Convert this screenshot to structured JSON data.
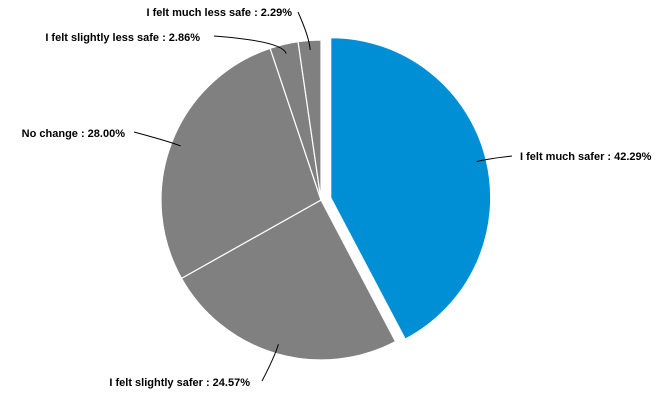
{
  "chart_data": {
    "type": "pie",
    "title": "",
    "series": [
      {
        "label": "I felt much safer",
        "value": 42.29,
        "display": "I felt much safer : 42.29%",
        "color": "#008fd5",
        "exploded": true
      },
      {
        "label": "I felt slightly safer",
        "value": 24.57,
        "display": "I felt slightly safer : 24.57%",
        "color": "#808080",
        "exploded": false
      },
      {
        "label": "No change",
        "value": 28.0,
        "display": "No change : 28.00%",
        "color": "#808080",
        "exploded": false
      },
      {
        "label": "I felt slightly less safe",
        "value": 2.86,
        "display": "I felt slightly less safe : 2.86%",
        "color": "#808080",
        "exploded": false
      },
      {
        "label": "I felt much less safe",
        "value": 2.29,
        "display": "I felt much less safe : 2.29%",
        "color": "#808080",
        "exploded": false
      }
    ],
    "legend": "none",
    "start_angle": "12 o'clock",
    "direction": "clockwise"
  }
}
